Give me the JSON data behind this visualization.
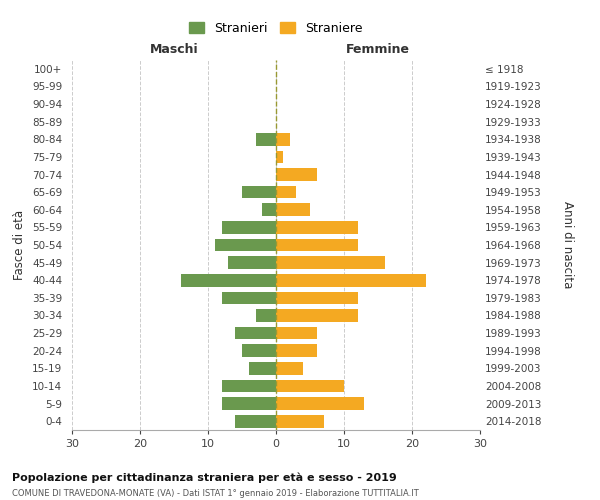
{
  "age_groups": [
    "0-4",
    "5-9",
    "10-14",
    "15-19",
    "20-24",
    "25-29",
    "30-34",
    "35-39",
    "40-44",
    "45-49",
    "50-54",
    "55-59",
    "60-64",
    "65-69",
    "70-74",
    "75-79",
    "80-84",
    "85-89",
    "90-94",
    "95-99",
    "100+"
  ],
  "birth_years": [
    "2014-2018",
    "2009-2013",
    "2004-2008",
    "1999-2003",
    "1994-1998",
    "1989-1993",
    "1984-1988",
    "1979-1983",
    "1974-1978",
    "1969-1973",
    "1964-1968",
    "1959-1963",
    "1954-1958",
    "1949-1953",
    "1944-1948",
    "1939-1943",
    "1934-1938",
    "1929-1933",
    "1924-1928",
    "1919-1923",
    "≤ 1918"
  ],
  "maschi": [
    6,
    8,
    8,
    4,
    5,
    6,
    3,
    8,
    14,
    7,
    9,
    8,
    2,
    5,
    0,
    0,
    3,
    0,
    0,
    0,
    0
  ],
  "femmine": [
    7,
    13,
    10,
    4,
    6,
    6,
    12,
    12,
    22,
    16,
    12,
    12,
    5,
    3,
    6,
    1,
    2,
    0,
    0,
    0,
    0
  ],
  "maschi_color": "#6a994e",
  "femmine_color": "#f4a922",
  "bg_color": "#ffffff",
  "grid_color": "#cccccc",
  "title": "Popolazione per cittadinanza straniera per età e sesso - 2019",
  "subtitle": "COMUNE DI TRAVEDONA-MONATE (VA) - Dati ISTAT 1° gennaio 2019 - Elaborazione TUTTITALIA.IT",
  "ylabel": "Fasce di età",
  "ylabel_right": "Anni di nascita",
  "xlabel_left": "Maschi",
  "xlabel_right": "Femmine",
  "legend_stranieri": "Stranieri",
  "legend_straniere": "Straniere",
  "xlim": 30
}
